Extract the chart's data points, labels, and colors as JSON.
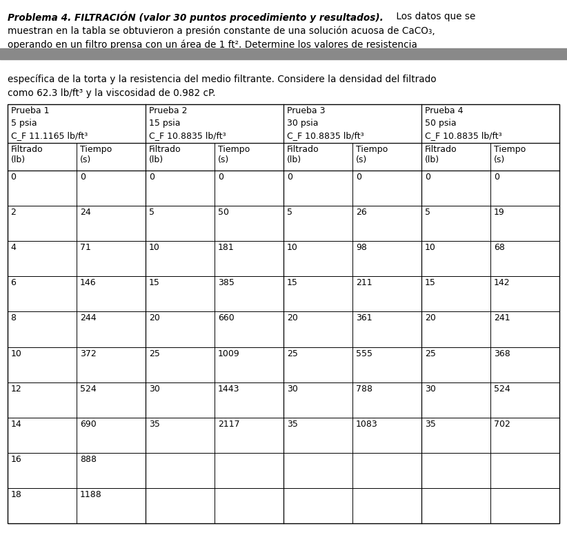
{
  "title_bold_italic": "Problema 4. FILTRACIÓN (valor 30 puntos procedimiento y resultados).",
  "line1_normal": " Los datos que se",
  "line2": "muestran en la tabla se obtuvieron a presión constante de una solución acuosa de CaCO₃,",
  "line3": "operando en un filtro prensa con un área de 1 ft². Determine los valores de resistencia",
  "body_line1": "específica de la torta y la resistencia del medio filtrante. Considere la densidad del filtrado",
  "body_line2": "como 62.3 lb/ft³ y la viscosidad de 0.982 cP.",
  "gray_bar_color": "#898989",
  "prueba_headers": [
    [
      "Prueba 1",
      "5 psia",
      "Cᴼ 11.1165 lb/ft³"
    ],
    [
      "Prueba 2",
      "15 psia",
      "Cᴼ 10.8835 lb/ft³"
    ],
    [
      "Prueba 3",
      "30 psia",
      "Cᴼ 10.8835 lb/ft³"
    ],
    [
      "Prueba 4",
      "50 psia",
      "Cᴼ 10.8835 lb/ft³"
    ]
  ],
  "cf_texts": [
    "C_F 11.1165 lb/ft³",
    "C_F 10.8835 lb/ft³",
    "C_F 10.8835 lb/ft³",
    "C_F 10.8835 lb/ft³"
  ],
  "table_data": [
    [
      "0",
      "0",
      "0",
      "0",
      "0",
      "0",
      "0",
      "0"
    ],
    [
      "2",
      "24",
      "5",
      "50",
      "5",
      "26",
      "5",
      "19"
    ],
    [
      "4",
      "71",
      "10",
      "181",
      "10",
      "98",
      "10",
      "68"
    ],
    [
      "6",
      "146",
      "15",
      "385",
      "15",
      "211",
      "15",
      "142"
    ],
    [
      "8",
      "244",
      "20",
      "660",
      "20",
      "361",
      "20",
      "241"
    ],
    [
      "10",
      "372",
      "25",
      "1009",
      "25",
      "555",
      "25",
      "368"
    ],
    [
      "12",
      "524",
      "30",
      "1443",
      "30",
      "788",
      "30",
      "524"
    ],
    [
      "14",
      "690",
      "35",
      "2117",
      "35",
      "1083",
      "35",
      "702"
    ],
    [
      "16",
      "888",
      "",
      "",
      "",
      "",
      "",
      ""
    ],
    [
      "18",
      "1188",
      "",
      "",
      "",
      "",
      "",
      ""
    ]
  ],
  "bg_color": "#ffffff",
  "text_color": "#000000",
  "font_size_text": 9.8,
  "font_size_table": 9.0
}
